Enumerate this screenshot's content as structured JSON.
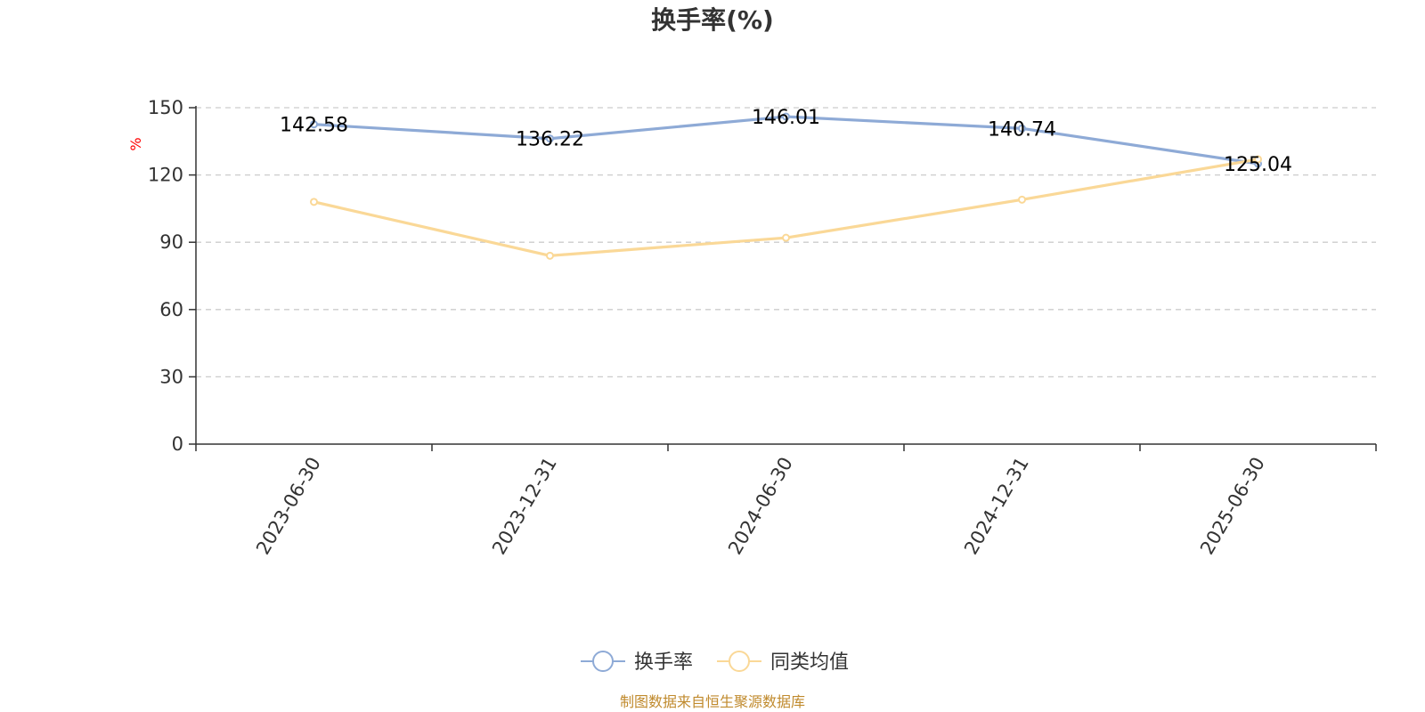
{
  "chart_data": {
    "type": "line",
    "title": "换手率(%)",
    "ylabel": "%",
    "categories": [
      "2023-06-30",
      "2023-12-31",
      "2024-06-30",
      "2024-12-31",
      "2025-06-30"
    ],
    "ylim": [
      0,
      150
    ],
    "yticks": [
      0,
      30,
      60,
      90,
      120,
      150
    ],
    "grid": true,
    "legend_position": "bottom-center",
    "series": [
      {
        "name": "换手率",
        "color": "#8eaad6",
        "values": [
          142.58,
          136.22,
          146.01,
          140.74,
          125.04
        ],
        "labels": [
          "142.58",
          "136.22",
          "146.01",
          "140.74",
          "125.04"
        ]
      },
      {
        "name": "同类均值",
        "color": "#fad897",
        "values": [
          108.0,
          84.0,
          92.0,
          109.0,
          127.0
        ]
      }
    ],
    "source": "制图数据来自恒生聚源数据库"
  }
}
